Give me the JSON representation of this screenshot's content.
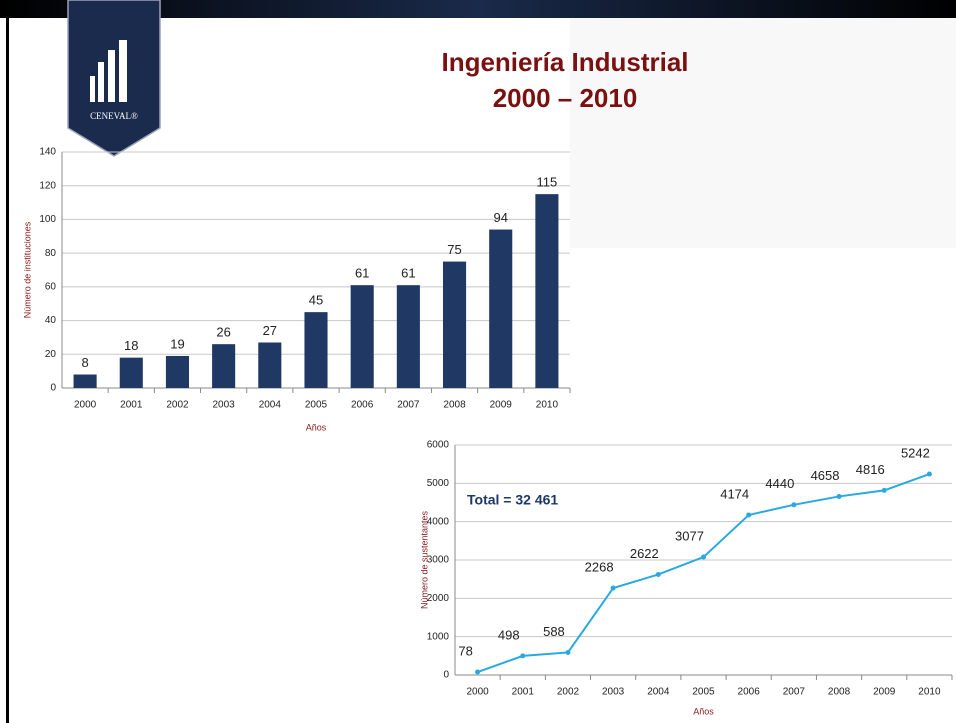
{
  "title": "Ingeniería Industrial",
  "subtitle": "2000 – 2010",
  "logo_text": "CENEVAL®",
  "chart_data": [
    {
      "type": "bar",
      "x_label": "Años",
      "y_label": "Número de instituciones",
      "categories": [
        "2000",
        "2001",
        "2002",
        "2003",
        "2004",
        "2005",
        "2006",
        "2007",
        "2008",
        "2009",
        "2010"
      ],
      "values": [
        8,
        18,
        19,
        26,
        27,
        45,
        61,
        61,
        75,
        94,
        115
      ],
      "color": "#1f3864",
      "ylim": [
        0,
        140
      ],
      "yticks": [
        0,
        20,
        40,
        60,
        80,
        100,
        120,
        140
      ],
      "grid": true
    },
    {
      "type": "line",
      "x_label": "Años",
      "y_label": "Número de sustentantes",
      "annotations": [
        "Total = 32 461"
      ],
      "categories": [
        "2000",
        "2001",
        "2002",
        "2003",
        "2004",
        "2005",
        "2006",
        "2007",
        "2008",
        "2009",
        "2010"
      ],
      "values": [
        78,
        498,
        588,
        2268,
        2622,
        3077,
        4174,
        4440,
        4658,
        4816,
        5242
      ],
      "color": "#29a9e1",
      "ylim": [
        0,
        6000
      ],
      "yticks": [
        0,
        1000,
        2000,
        3000,
        4000,
        5000,
        6000
      ],
      "grid": true
    }
  ]
}
